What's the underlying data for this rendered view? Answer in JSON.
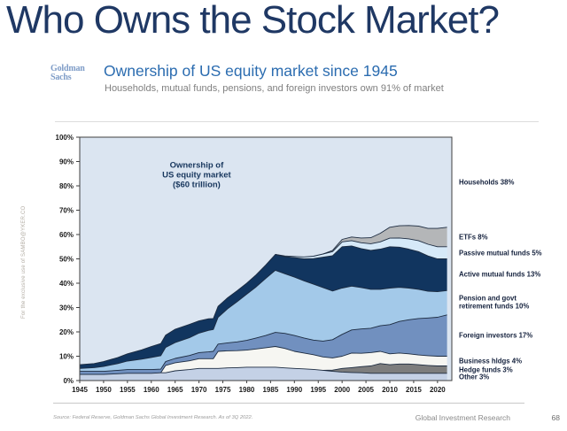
{
  "page": {
    "title": "Who Owns the Stock Market?",
    "watermark": "For the exclusive use of SAMBO@YKER.CO",
    "footer": {
      "source": "Source: Federal Reserve, Goldman Sachs Global Investment Research. As of 3Q 2022.",
      "brand": "Global Investment Research",
      "page_number": "68"
    }
  },
  "header": {
    "logo_line1": "Goldman",
    "logo_line2": "Sachs",
    "heading": "Ownership of US equity market since 1945",
    "subheading": "Households, mutual funds, pensions, and foreign investors own 91% of market"
  },
  "colors": {
    "title_navy": "#1f3864",
    "heading_blue": "#2b6cb0",
    "logo_blue": "#7e9cc7",
    "subtitle_gray": "#7f7f7f"
  },
  "chart_data": {
    "type": "area",
    "stacked": true,
    "title": "Ownership of US equity market ($60 trillion)",
    "annotation": {
      "lines": [
        "Ownership of",
        "US equity market",
        "($60 trillion)"
      ],
      "x_year": 1969.5,
      "y_percents": [
        87.5,
        83.5,
        79.5
      ]
    },
    "xlim": [
      1945,
      2023
    ],
    "ylim": [
      0,
      100
    ],
    "x_ticks": [
      "1945",
      "1950",
      "1955",
      "1960",
      "1965",
      "1970",
      "1975",
      "1980",
      "1985",
      "1990",
      "1995",
      "2000",
      "2005",
      "2010",
      "2015",
      "2020"
    ],
    "y_ticks": [
      "0%",
      "10%",
      "20%",
      "30%",
      "40%",
      "50%",
      "60%",
      "70%",
      "80%",
      "90%",
      "100%"
    ],
    "outline_color": "#1c2b40",
    "axis_color": "#3f3f3f",
    "tick_text_color": "#1a1a1a",
    "annotation_color": "#17365d",
    "legend_position": "right",
    "grid": false,
    "x": [
      1945,
      1948,
      1950,
      1953,
      1955,
      1958,
      1960,
      1962,
      1963,
      1965,
      1968,
      1970,
      1972,
      1973,
      1974,
      1976,
      1978,
      1980,
      1982,
      1984,
      1986,
      1988,
      1990,
      1992,
      1994,
      1996,
      1998,
      2000,
      2002,
      2004,
      2006,
      2008,
      2010,
      2012,
      2014,
      2016,
      2018,
      2020,
      2022
    ],
    "series": [
      {
        "name": "Other",
        "label": "Other 3%",
        "color": "#c4d1e6",
        "values": [
          2.5,
          2.5,
          2.5,
          2.8,
          3,
          3,
          3,
          3.2,
          3.2,
          4,
          4.5,
          5,
          5,
          5,
          5,
          5.2,
          5.3,
          5.5,
          5.5,
          5.5,
          5.5,
          5.2,
          5,
          4.8,
          4.6,
          4.2,
          3.8,
          3.5,
          3.3,
          3.2,
          3,
          3,
          3,
          3,
          3,
          3,
          3,
          3,
          3
        ]
      },
      {
        "name": "Hedge funds",
        "label": "Hedge funds 3%",
        "color": "#7d7d7d",
        "values": [
          0,
          0,
          0,
          0,
          0,
          0,
          0,
          0,
          0,
          0,
          0,
          0,
          0,
          0,
          0,
          0,
          0,
          0,
          0,
          0,
          0,
          0,
          0,
          0,
          0,
          0,
          0.5,
          1.5,
          2,
          2.5,
          3,
          4,
          3.5,
          3.8,
          3.8,
          3.5,
          3.2,
          3,
          3
        ]
      },
      {
        "name": "Business hldgs",
        "label": "Business hldgs 4%",
        "color": "#f6f6f2",
        "values": [
          0,
          0,
          0,
          0,
          0,
          0,
          0,
          0,
          3,
          3.3,
          3.6,
          4,
          4,
          4,
          7,
          7,
          7,
          7,
          7.5,
          8,
          8.5,
          8,
          7,
          6.5,
          6,
          5.5,
          5,
          5,
          6,
          5.5,
          5.5,
          5,
          4.5,
          4.5,
          4.2,
          4,
          4,
          4,
          4
        ]
      },
      {
        "name": "Foreign investors",
        "label": "Foreign investors 17%",
        "color": "#7190bf",
        "values": [
          1.3,
          1.3,
          1.3,
          1.4,
          1.5,
          1.5,
          1.5,
          1.5,
          1.6,
          1.8,
          2.2,
          2.5,
          2.8,
          3,
          3,
          3.3,
          3.6,
          4,
          4.5,
          5,
          5.8,
          6.2,
          6.5,
          6.2,
          6,
          6.5,
          7.5,
          9,
          9.5,
          10,
          10,
          10.5,
          12,
          13,
          14,
          15,
          15.5,
          16,
          17
        ]
      },
      {
        "name": "Pension and govt retirement funds",
        "label": "Pension and govt\nretirement funds 10%",
        "color": "#a3c9e9",
        "values": [
          1.2,
          1.5,
          2,
          2.8,
          3.5,
          4.3,
          5,
          5.5,
          5.8,
          6.5,
          7.3,
          8,
          8.8,
          9,
          11,
          14,
          16.5,
          19,
          21,
          23.5,
          25.5,
          24.5,
          24,
          23.5,
          23,
          22,
          20,
          19,
          18,
          17,
          16,
          15,
          15,
          14,
          13,
          12,
          11,
          10.5,
          10
        ]
      },
      {
        "name": "Active mutual funds",
        "label": "Active mutual funds 13%",
        "color": "#11355f",
        "values": [
          1.5,
          1.7,
          2,
          2.5,
          3,
          3.8,
          4.5,
          5,
          5,
          5.5,
          5.5,
          5,
          4.8,
          4.5,
          4.5,
          4.5,
          4.5,
          4.5,
          5,
          5.5,
          6.5,
          7,
          8,
          9,
          10.5,
          12.5,
          14.5,
          17,
          16.5,
          16,
          16,
          16.5,
          17,
          16.5,
          16,
          15.5,
          14.5,
          13.5,
          13
        ]
      },
      {
        "name": "Passive mutual funds",
        "label": "Passive mutual funds 5%",
        "color": "#d6e9f8",
        "values": [
          0,
          0,
          0,
          0,
          0,
          0,
          0,
          0,
          0,
          0,
          0,
          0,
          0,
          0,
          0,
          0,
          0,
          0,
          0,
          0,
          0,
          0.3,
          0.5,
          0.8,
          1,
          1.3,
          1.7,
          2,
          2.2,
          2.4,
          2.7,
          3,
          3.5,
          3.8,
          4.2,
          4.5,
          4.8,
          5,
          5
        ]
      },
      {
        "name": "ETFs",
        "label": "ETFs 8%",
        "color": "#b4b6b8",
        "values": [
          0,
          0,
          0,
          0,
          0,
          0,
          0,
          0,
          0,
          0,
          0,
          0,
          0,
          0,
          0,
          0,
          0,
          0,
          0,
          0,
          0,
          0,
          0,
          0,
          0,
          0,
          0.5,
          1,
          1.5,
          2,
          2.5,
          3.5,
          4.5,
          5,
          5.5,
          6,
          6.5,
          7.5,
          8
        ]
      },
      {
        "name": "Households",
        "label": "Households 38%",
        "color": "#dbe5f1",
        "remainder": true
      }
    ]
  }
}
